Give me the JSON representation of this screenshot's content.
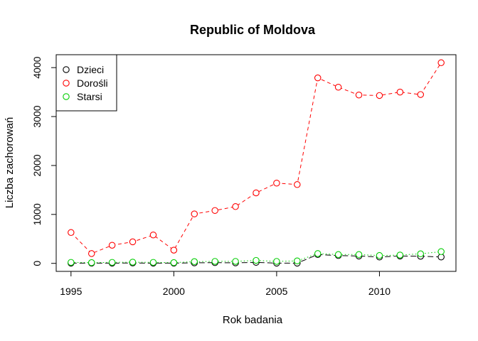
{
  "chart_data": {
    "type": "line",
    "title": "Republic of Moldova",
    "xlabel": "Rok badania",
    "ylabel": "Liczba zachorowań",
    "x": [
      1995,
      1996,
      1997,
      1998,
      1999,
      2000,
      2001,
      2002,
      2003,
      2004,
      2005,
      2006,
      2007,
      2008,
      2009,
      2010,
      2011,
      2012,
      2013
    ],
    "xlim": [
      1994.28,
      2013.72
    ],
    "ylim": [
      -164,
      4264
    ],
    "x_ticks": [
      1995,
      2000,
      2005,
      2010
    ],
    "y_ticks": [
      0,
      1000,
      2000,
      3000,
      4000
    ],
    "grid": false,
    "legend_position": "top-left",
    "series": [
      {
        "name": "Dzieci",
        "color": "#000000",
        "line_style": "longdash",
        "marker": "open-circle",
        "values": [
          5,
          5,
          5,
          8,
          5,
          5,
          10,
          15,
          10,
          20,
          5,
          5,
          180,
          160,
          150,
          130,
          150,
          145,
          130
        ]
      },
      {
        "name": "Dorośli",
        "color": "#ff0000",
        "line_style": "dashed",
        "marker": "open-circle",
        "values": [
          630,
          200,
          370,
          440,
          580,
          270,
          1010,
          1080,
          1160,
          1440,
          1640,
          1610,
          3790,
          3600,
          3440,
          3430,
          3500,
          3450,
          4100
        ]
      },
      {
        "name": "Starsi",
        "color": "#00cd00",
        "line_style": "dotted",
        "marker": "open-circle",
        "values": [
          20,
          15,
          20,
          25,
          20,
          15,
          35,
          40,
          40,
          60,
          40,
          50,
          200,
          180,
          180,
          160,
          170,
          195,
          240
        ]
      }
    ]
  }
}
